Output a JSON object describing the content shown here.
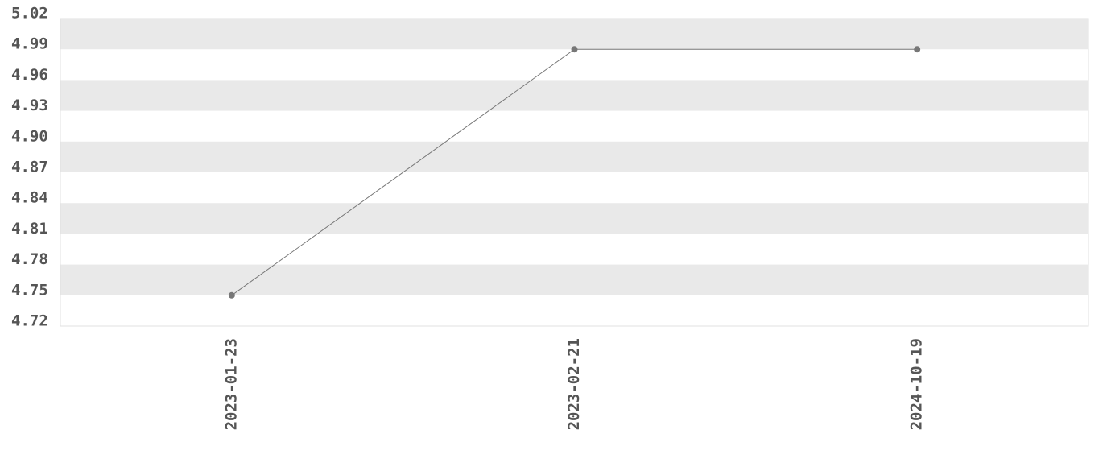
{
  "chart_data": {
    "type": "line",
    "categories": [
      "2023-01-23",
      "2023-02-21",
      "2024-10-19"
    ],
    "values": [
      4.75,
      4.99,
      4.99
    ],
    "color": "#777777",
    "ylim": [
      4.72,
      5.02
    ],
    "yticks": [
      4.72,
      4.75,
      4.78,
      4.81,
      4.84,
      4.87,
      {
        "value": 4.9,
        "label": "4.90"
      },
      4.93,
      4.96,
      4.99,
      5.02
    ]
  }
}
